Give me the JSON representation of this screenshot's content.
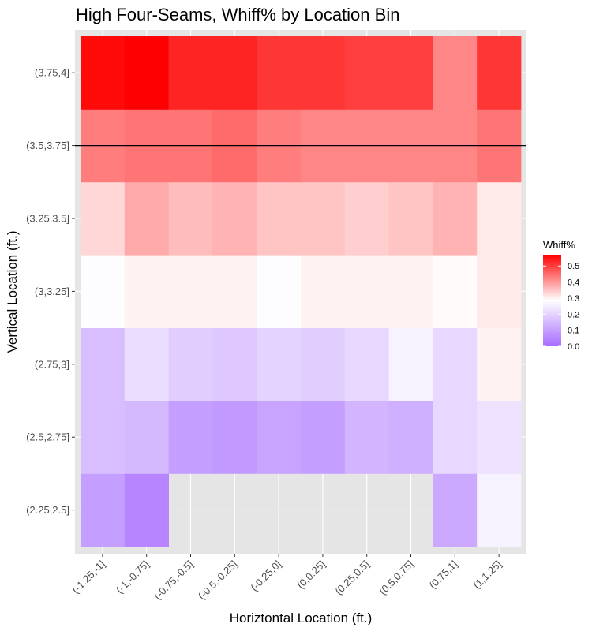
{
  "chart_data": {
    "type": "heatmap",
    "title": "High Four-Seams, Whiff% by Location Bin",
    "xlabel": "Horiztontal Location (ft.)",
    "ylabel": "Vertical Location (ft.)",
    "x_categories": [
      "(-1.25,-1]",
      "(-1,-0.75]",
      "(-0.75,-0.5]",
      "(-0.5,-0.25]",
      "(-0.25,0]",
      "(0,0.25]",
      "(0.25,0.5]",
      "(0.5,0.75]",
      "(0.75,1]",
      "(1,1.25]"
    ],
    "y_categories": [
      "(2.25,2.5]",
      "(2.5,2.75]",
      "(2.75,3]",
      "(3,3.25]",
      "(3.25,3.5]",
      "(3.5,3.75]",
      "(3.75,4]"
    ],
    "values": [
      [
        0.1,
        0.05,
        null,
        null,
        null,
        null,
        null,
        null,
        0.12,
        0.26
      ],
      [
        0.16,
        0.15,
        0.1,
        0.09,
        0.11,
        0.1,
        0.14,
        0.13,
        0.21,
        0.23
      ],
      [
        0.16,
        0.22,
        0.19,
        0.18,
        0.2,
        0.19,
        0.21,
        0.26,
        0.21,
        0.3
      ],
      [
        0.28,
        0.3,
        0.3,
        0.3,
        0.28,
        0.3,
        0.3,
        0.3,
        0.29,
        0.31
      ],
      [
        0.33,
        0.38,
        0.36,
        0.37,
        0.35,
        0.35,
        0.34,
        0.35,
        0.37,
        0.31
      ],
      [
        0.43,
        0.44,
        0.44,
        0.45,
        0.43,
        0.42,
        0.42,
        0.42,
        0.42,
        0.44
      ],
      [
        0.56,
        0.57,
        0.53,
        0.53,
        0.51,
        0.51,
        0.5,
        0.5,
        0.42,
        0.51
      ]
    ],
    "hline_y": "(3.5,3.75]",
    "legend": {
      "title": "Whiff%",
      "position": "right",
      "ticks": [
        "0.5",
        "0.4",
        "0.3",
        "0.2",
        "0.1",
        "0.0"
      ],
      "tick_values": [
        0.5,
        0.4,
        0.3,
        0.2,
        0.1,
        0.0
      ],
      "range": [
        0.0,
        0.57
      ]
    },
    "colors": {
      "low": "#a66bff",
      "mid": "#ffffff",
      "high": "#ff0000",
      "panel_background": "#e5e5e5",
      "grid": "#ffffff",
      "hline": "#000000"
    },
    "grid": true
  }
}
